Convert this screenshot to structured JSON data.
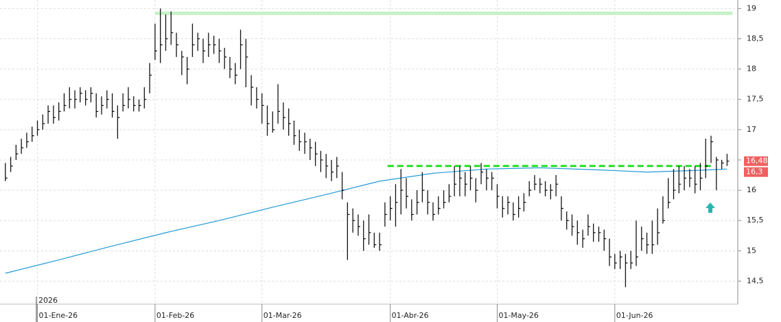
{
  "chart_data": {
    "type": "ohlc",
    "x": [
      0,
      1,
      2,
      3,
      4,
      5,
      6,
      7,
      8,
      9,
      10,
      11,
      12,
      13,
      14,
      15,
      16,
      17,
      18,
      19,
      20,
      21,
      22,
      23,
      24,
      25,
      26,
      27,
      28,
      29,
      30,
      31,
      32,
      33,
      34,
      35,
      36,
      37,
      38,
      39,
      40,
      41,
      42,
      43,
      44,
      45,
      46,
      47,
      48,
      49,
      50,
      51,
      52,
      53,
      54,
      55,
      56,
      57,
      58,
      59,
      60,
      61,
      62,
      63,
      64,
      65,
      66,
      67,
      68,
      69,
      70,
      71,
      72,
      73,
      74,
      75,
      76,
      77,
      78,
      79,
      80,
      81,
      82,
      83,
      84,
      85,
      86,
      87,
      88,
      89,
      90,
      91,
      92,
      93,
      94,
      95,
      96,
      97,
      98,
      99,
      100,
      101,
      102,
      103,
      104,
      105,
      106,
      107,
      108,
      109,
      110,
      111,
      112,
      113,
      114,
      115,
      116,
      117,
      118,
      119,
      120,
      121,
      122,
      123,
      124,
      125,
      126,
      127,
      128,
      129,
      130,
      131,
      132,
      133,
      134,
      135
    ],
    "high": [
      16.45,
      16.55,
      16.75,
      16.85,
      16.95,
      17.05,
      17.15,
      17.25,
      17.4,
      17.4,
      17.45,
      17.6,
      17.7,
      17.65,
      17.7,
      17.65,
      17.7,
      17.6,
      17.55,
      17.65,
      17.6,
      17.4,
      17.6,
      17.7,
      17.55,
      17.5,
      17.7,
      18.1,
      18.75,
      19.0,
      18.9,
      18.95,
      18.6,
      18.3,
      18.2,
      18.75,
      18.6,
      18.5,
      18.6,
      18.55,
      18.5,
      18.35,
      18.2,
      18.1,
      18.65,
      18.5,
      17.9,
      17.7,
      17.6,
      17.4,
      17.3,
      17.75,
      17.45,
      17.35,
      17.15,
      17.0,
      16.95,
      16.85,
      16.8,
      16.65,
      16.6,
      16.5,
      16.55,
      16.3,
      15.8,
      15.7,
      15.6,
      15.5,
      15.6,
      15.3,
      15.3,
      15.8,
      15.9,
      16.1,
      16.35,
      16.2,
      15.85,
      16.0,
      16.3,
      16.0,
      15.8,
      15.9,
      16.0,
      16.1,
      16.4,
      16.4,
      16.3,
      16.4,
      16.2,
      16.45,
      16.35,
      16.3,
      16.1,
      15.9,
      15.9,
      15.8,
      15.9,
      15.95,
      16.15,
      16.25,
      16.2,
      16.15,
      16.1,
      16.25,
      15.9,
      15.65,
      15.6,
      15.5,
      15.35,
      15.6,
      15.45,
      15.4,
      15.35,
      15.2,
      14.95,
      15.0,
      14.95,
      15.0,
      15.5,
      15.4,
      15.3,
      15.5,
      15.7,
      15.9,
      16.2,
      16.35,
      16.4,
      16.4,
      16.35,
      16.4,
      16.45,
      16.85,
      16.9,
      16.55,
      16.5,
      16.6
    ],
    "low": [
      16.15,
      16.3,
      16.5,
      16.6,
      16.7,
      16.8,
      16.9,
      17.0,
      17.1,
      17.1,
      17.15,
      17.3,
      17.35,
      17.35,
      17.45,
      17.4,
      17.45,
      17.2,
      17.25,
      17.35,
      17.2,
      16.85,
      17.3,
      17.35,
      17.3,
      17.3,
      17.35,
      17.6,
      18.15,
      18.1,
      18.3,
      18.4,
      18.2,
      17.9,
      17.75,
      18.2,
      18.3,
      18.1,
      18.2,
      18.25,
      18.1,
      18.0,
      17.85,
      17.75,
      18.0,
      17.7,
      17.4,
      17.35,
      17.1,
      16.9,
      16.95,
      17.1,
      17.0,
      16.9,
      16.75,
      16.65,
      16.6,
      16.5,
      16.4,
      16.3,
      16.2,
      16.15,
      16.2,
      15.85,
      14.85,
      15.3,
      15.25,
      15.0,
      15.1,
      15.05,
      15.0,
      15.4,
      15.5,
      15.4,
      15.6,
      15.7,
      15.5,
      15.6,
      15.8,
      15.6,
      15.5,
      15.6,
      15.7,
      15.8,
      15.9,
      15.9,
      15.9,
      16.0,
      15.8,
      16.1,
      16.0,
      16.0,
      15.7,
      15.55,
      15.6,
      15.5,
      15.55,
      15.65,
      15.9,
      16.0,
      15.95,
      15.9,
      15.85,
      15.9,
      15.5,
      15.35,
      15.25,
      15.1,
      15.05,
      15.25,
      15.15,
      15.15,
      15.0,
      14.75,
      14.7,
      14.7,
      14.4,
      14.7,
      14.75,
      15.0,
      14.95,
      14.95,
      15.1,
      15.45,
      15.7,
      15.85,
      15.95,
      16.0,
      16.05,
      15.95,
      16.0,
      16.2,
      16.45,
      16.0,
      16.35,
      16.4
    ],
    "close": [
      16.2,
      16.4,
      16.6,
      16.7,
      16.8,
      16.9,
      17.0,
      17.1,
      17.3,
      17.2,
      17.3,
      17.4,
      17.5,
      17.5,
      17.6,
      17.5,
      17.6,
      17.3,
      17.4,
      17.5,
      17.3,
      17.2,
      17.4,
      17.5,
      17.4,
      17.4,
      17.5,
      17.9,
      18.3,
      18.4,
      18.5,
      18.6,
      18.4,
      18.2,
      18.0,
      18.4,
      18.5,
      18.3,
      18.4,
      18.4,
      18.3,
      18.2,
      18.0,
      17.9,
      18.4,
      18.2,
      17.7,
      17.5,
      17.4,
      17.1,
      17.0,
      17.3,
      17.2,
      17.1,
      16.9,
      16.8,
      16.8,
      16.7,
      16.6,
      16.5,
      16.4,
      16.3,
      16.4,
      16.0,
      15.6,
      15.5,
      15.4,
      15.2,
      15.3,
      15.1,
      15.1,
      15.6,
      15.7,
      15.8,
      16.0,
      15.9,
      15.6,
      15.8,
      16.0,
      15.8,
      15.6,
      15.7,
      15.8,
      15.9,
      16.1,
      16.2,
      16.1,
      16.2,
      16.0,
      16.3,
      16.2,
      16.2,
      15.9,
      15.7,
      15.8,
      15.6,
      15.7,
      15.8,
      16.0,
      16.1,
      16.1,
      16.0,
      16.0,
      16.1,
      15.7,
      15.5,
      15.4,
      15.3,
      15.2,
      15.4,
      15.3,
      15.3,
      15.2,
      14.9,
      14.8,
      14.9,
      14.8,
      14.8,
      14.9,
      15.2,
      15.1,
      15.1,
      15.3,
      15.5,
      15.8,
      16.0,
      16.1,
      16.2,
      16.2,
      16.1,
      16.2,
      16.4,
      16.8,
      16.5,
      16.45,
      16.48
    ],
    "bar_color": "#111111",
    "lines": [
      {
        "color": "#1e9ad6",
        "x": [
          0,
          10,
          20,
          30,
          40,
          50,
          60,
          70,
          80,
          90,
          100,
          110,
          120,
          130,
          135
        ],
        "values": [
          14.63,
          14.85,
          15.08,
          15.3,
          15.5,
          15.72,
          15.93,
          16.15,
          16.28,
          16.35,
          16.37,
          16.34,
          16.3,
          16.33,
          16.35
        ]
      }
    ],
    "levels": [
      {
        "value": 18.92,
        "from": 28,
        "to": 136,
        "color": "#c6f2c6",
        "style": "solid"
      },
      {
        "value": 16.4,
        "from": 71.5,
        "to": 132.5,
        "color": "#22dd22",
        "style": "dashed"
      }
    ],
    "price_labels": [
      {
        "value": 16.48,
        "label": "16,48"
      },
      {
        "value": 16.3,
        "label": "16,3"
      }
    ],
    "price_label_color": "#f06060",
    "xlim": [
      -1,
      137
    ],
    "ylim": [
      14.12,
      19.14
    ],
    "yticks": [
      {
        "value": 14.5,
        "label": "14,5"
      },
      15,
      {
        "value": 15.5,
        "label": "15,5"
      },
      16,
      {
        "value": 16.5,
        "label": "16,5"
      },
      17,
      {
        "value": 17.5,
        "label": "17,5"
      },
      18,
      {
        "value": 18.5,
        "label": "18,5"
      },
      19
    ],
    "xticks": [
      {
        "value": 6,
        "label": "01-Ene-26"
      },
      {
        "value": 28,
        "label": "01-Feb-26"
      },
      {
        "value": 48,
        "label": "01-Mar-26"
      },
      {
        "value": 72,
        "label": "01-Abr-26"
      },
      {
        "value": 92,
        "label": "01-May-26"
      },
      {
        "value": 114,
        "label": "01-Jun-26"
      }
    ],
    "year_label": "2026",
    "grid": true
  }
}
